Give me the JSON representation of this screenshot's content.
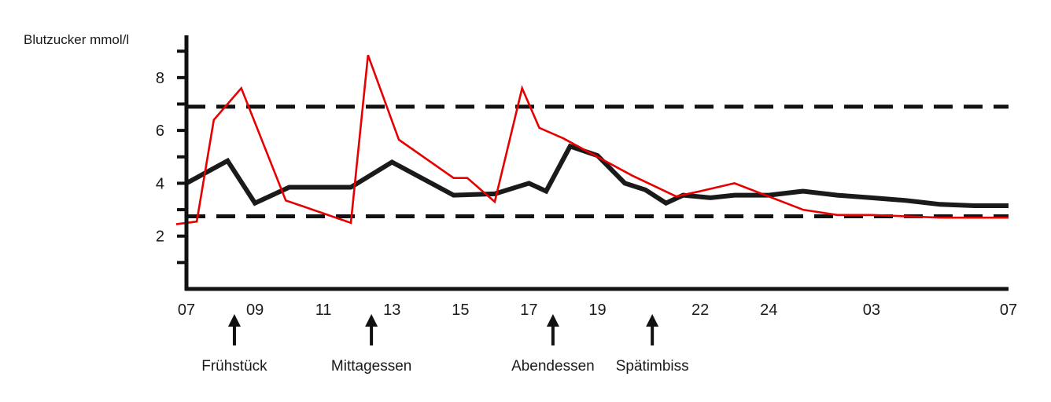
{
  "chart_data": {
    "type": "line",
    "title": "",
    "ylabel": "Blutzucker mmol/l",
    "xlabel": "",
    "ylim": [
      0,
      9.6
    ],
    "yticks": [
      2,
      4,
      6,
      8
    ],
    "yminor": [
      1,
      3,
      5,
      7,
      9
    ],
    "x_tick_labels": [
      "07",
      "09",
      "11",
      "13",
      "15",
      "17",
      "19",
      "22",
      "24",
      "03",
      "07"
    ],
    "x_tick_hours": [
      0,
      2,
      4,
      6,
      8,
      10,
      12,
      15,
      17,
      20,
      24
    ],
    "reference_lines": [
      {
        "value": 6.9,
        "style": "dashed"
      },
      {
        "value": 2.75,
        "style": "dashed"
      }
    ],
    "series": [
      {
        "color": "#1a1a1a",
        "x": [
          0,
          1.2,
          2,
          3,
          4.8,
          6,
          7.8,
          9,
          10,
          10.5,
          11.2,
          12,
          12.8,
          13.4,
          14,
          14.5,
          15.3,
          16,
          17,
          18,
          19,
          20,
          21,
          22,
          23,
          24
        ],
        "values": [
          4.0,
          4.85,
          3.25,
          3.85,
          3.85,
          4.8,
          3.55,
          3.6,
          4.0,
          3.7,
          5.4,
          5.05,
          4.0,
          3.75,
          3.25,
          3.55,
          3.45,
          3.55,
          3.55,
          3.7,
          3.55,
          3.45,
          3.35,
          3.2,
          3.15,
          3.15
        ]
      },
      {
        "color": "#e60000",
        "x": [
          -0.3,
          0.3,
          0.8,
          1.6,
          2.9,
          4.8,
          5.3,
          6.2,
          7.8,
          8.2,
          9,
          9.8,
          10.3,
          11,
          12,
          13,
          14.3,
          15,
          16,
          17,
          18,
          19,
          20,
          21,
          22,
          24
        ],
        "values": [
          2.45,
          2.55,
          6.4,
          7.6,
          3.35,
          2.5,
          8.85,
          5.65,
          4.2,
          4.2,
          3.3,
          7.6,
          6.1,
          5.7,
          5.0,
          4.3,
          3.5,
          3.7,
          4.0,
          3.5,
          3.0,
          2.8,
          2.8,
          2.75,
          2.7,
          2.7
        ]
      }
    ],
    "annotations": [
      {
        "label": "Frühstück",
        "hour": 1.4
      },
      {
        "label": "Mittagessen",
        "hour": 5.4
      },
      {
        "label": "Abendessen",
        "hour": 10.7
      },
      {
        "label": "Spätimbiss",
        "hour": 13.6
      }
    ]
  }
}
